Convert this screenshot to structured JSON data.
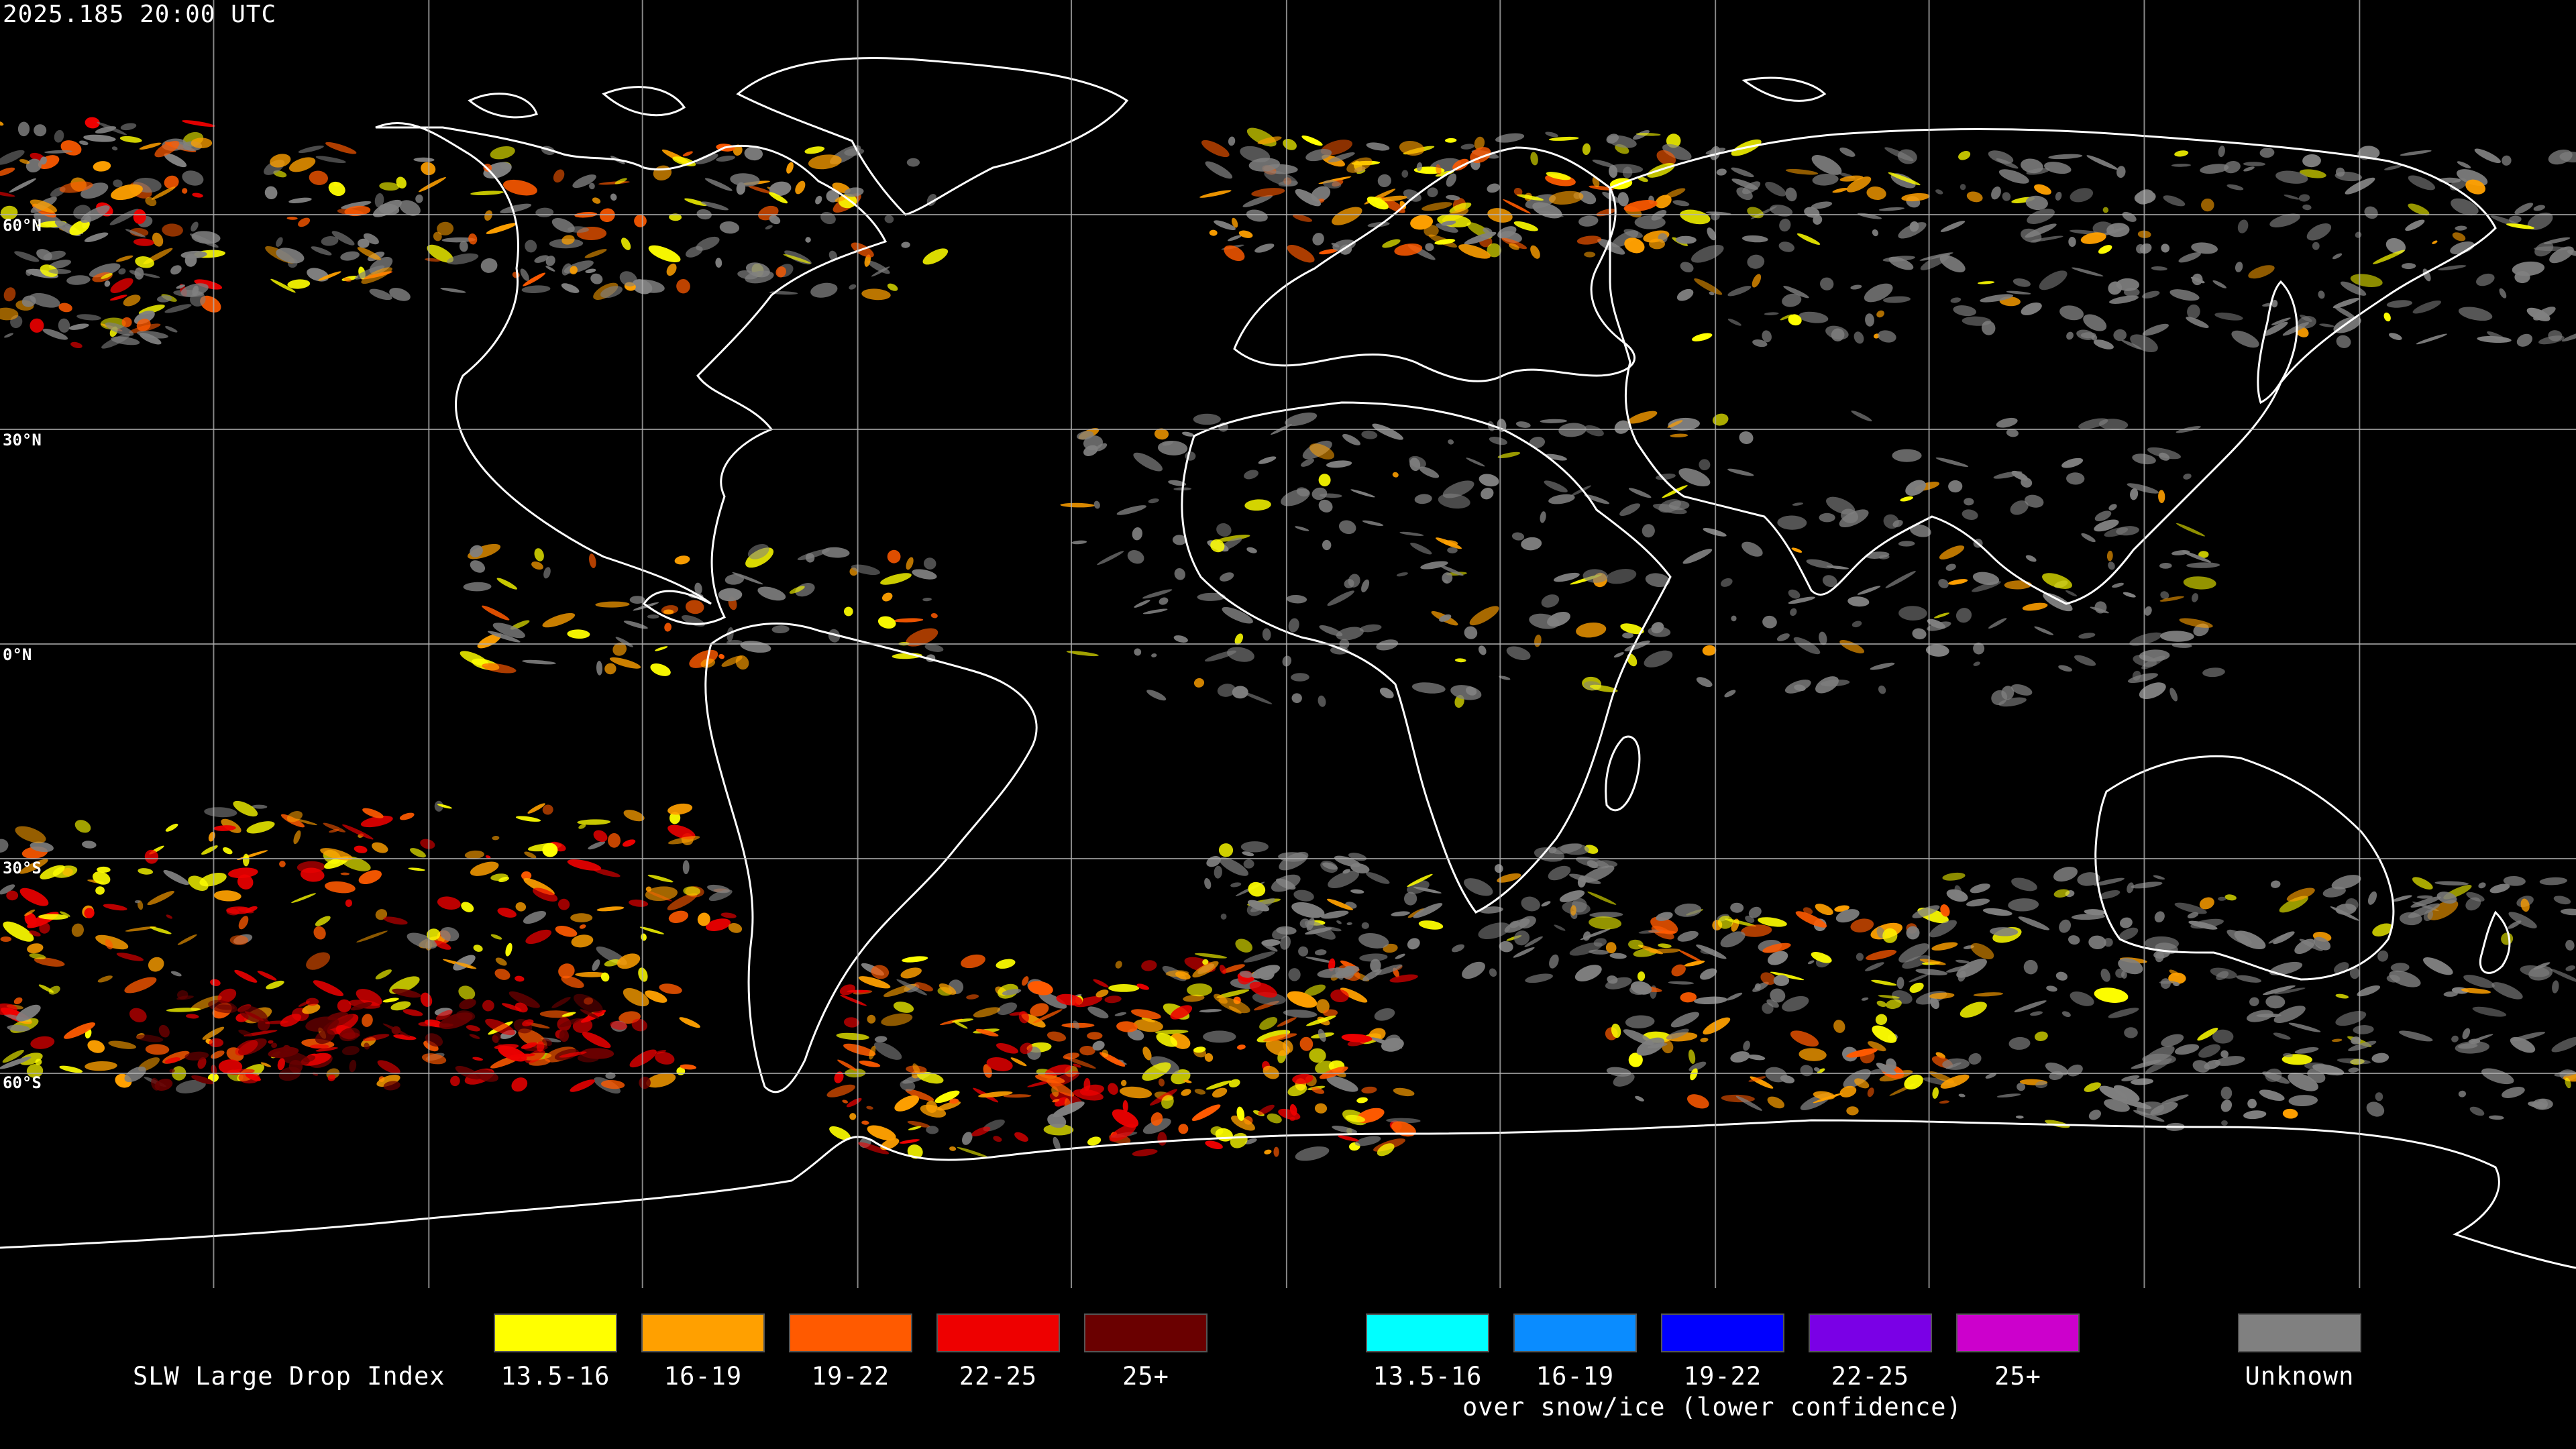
{
  "timestamp": "2025.185 20:00 UTC",
  "lat_labels": [
    "60°N",
    "30°N",
    "0°N",
    "30°S",
    "60°S"
  ],
  "legend": {
    "title": "SLW Large Drop Index",
    "standard": [
      {
        "label": "13.5-16",
        "color": "#ffff00"
      },
      {
        "label": "16-19",
        "color": "#ffa000"
      },
      {
        "label": "19-22",
        "color": "#ff5a00"
      },
      {
        "label": "22-25",
        "color": "#ee0000"
      },
      {
        "label": "25+",
        "color": "#6a0000"
      }
    ],
    "snow_ice": [
      {
        "label": "13.5-16",
        "color": "#00ffff"
      },
      {
        "label": "16-19",
        "color": "#0a8cff"
      },
      {
        "label": "19-22",
        "color": "#0000ff"
      },
      {
        "label": "22-25",
        "color": "#7a00e6"
      },
      {
        "label": "25+",
        "color": "#cc00cc"
      }
    ],
    "snow_ice_note": "over snow/ice (lower confidence)",
    "unknown": {
      "label": "Unknown",
      "color": "#808080"
    }
  },
  "colors": {
    "background": "#000000",
    "grid": "#b4b4b4",
    "coastline": "#ffffff"
  }
}
